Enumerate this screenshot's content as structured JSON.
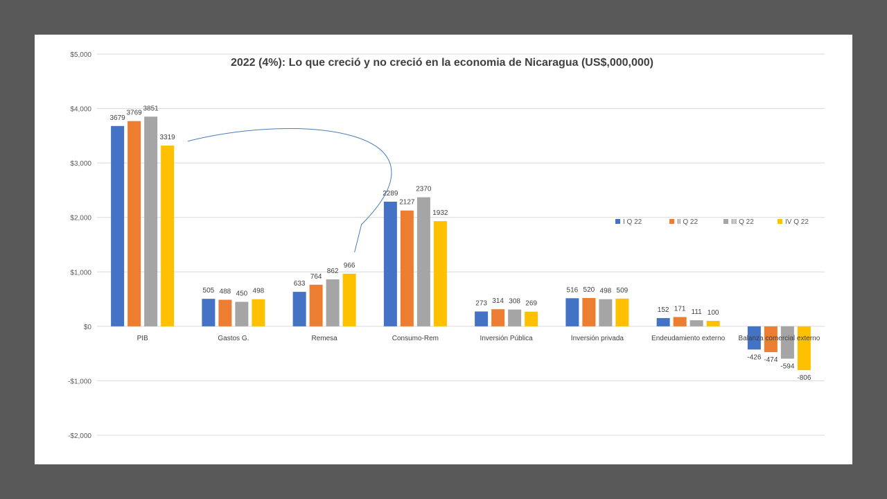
{
  "chart_data": {
    "type": "bar",
    "title": "2022 (4%): Lo que creció y  no creció en la economia de Nicaragua (US$,000,000)",
    "xlabel": "",
    "ylabel": "",
    "ylim": [
      -2000,
      5000
    ],
    "yticks": [
      -2000,
      -1000,
      0,
      1000,
      2000,
      3000,
      4000,
      5000
    ],
    "ytick_labels": [
      "-$2,000",
      "-$1,000",
      "$0",
      "$1,000",
      "$2,000",
      "$3,000",
      "$4,000",
      "$5,000"
    ],
    "grid": true,
    "legend_position": "right-middle",
    "categories": [
      "PIB",
      "Gastos G.",
      "Remesa",
      "Consumo-Rem",
      "Inversión Pública",
      "Inversión privada",
      "Endeudamiento externo",
      "Balanza comercial externo"
    ],
    "series": [
      {
        "name": "I Q 22",
        "color": "#4472C4",
        "values": [
          3679,
          505,
          633,
          2289,
          273,
          516,
          152,
          -426
        ]
      },
      {
        "name": "II Q 22",
        "color": "#ED7D31",
        "values": [
          3769,
          488,
          764,
          2127,
          314,
          520,
          171,
          -474
        ]
      },
      {
        "name": "III Q 22",
        "color": "#A5A5A5",
        "values": [
          3851,
          450,
          862,
          2370,
          308,
          498,
          111,
          -594
        ]
      },
      {
        "name": "IV Q 22",
        "color": "#FFC000",
        "values": [
          3319,
          498,
          966,
          1932,
          269,
          509,
          100,
          -806
        ]
      }
    ],
    "annotation": {
      "type": "curved-arrow",
      "from_category": "PIB",
      "to_category": "Remesa",
      "color": "#4A7BB7"
    }
  }
}
